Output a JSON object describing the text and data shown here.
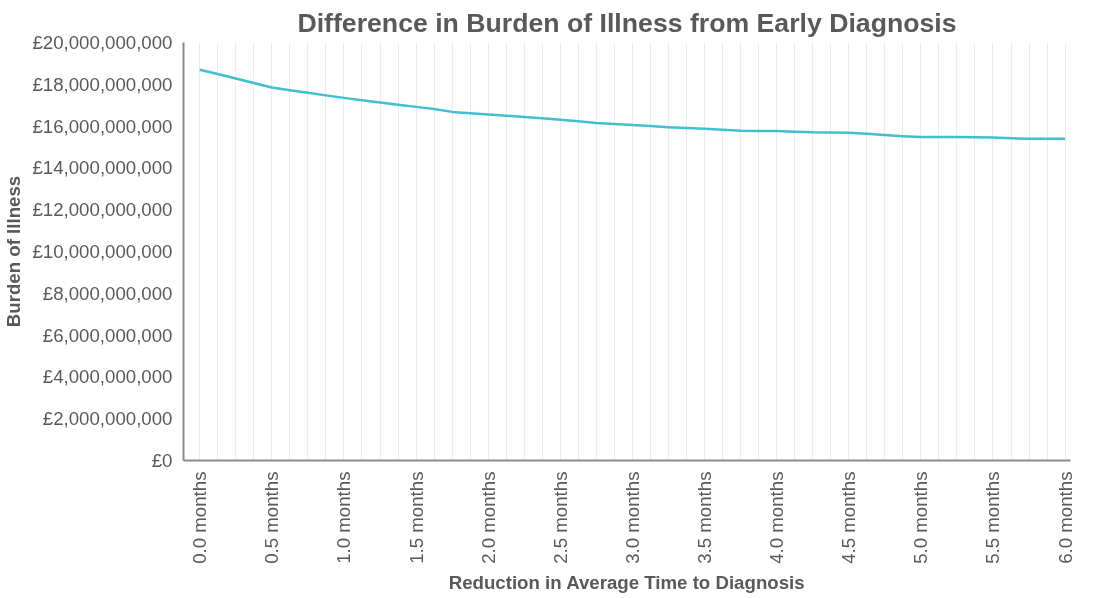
{
  "chart_data": {
    "type": "line",
    "title": "Difference in Burden of Illness from Early Diagnosis",
    "xlabel": "Reduction in Average Time to Diagnosis",
    "ylabel": "Burden of Illness",
    "categories": [
      "0.0 months",
      null,
      null,
      null,
      "0.5 months",
      null,
      null,
      null,
      "1.0 months",
      null,
      null,
      null,
      "1.5 months",
      null,
      null,
      null,
      "2.0 months",
      null,
      null,
      null,
      "2.5 months",
      null,
      null,
      null,
      "3.0 months",
      null,
      null,
      null,
      "3.5 months",
      null,
      null,
      null,
      "4.0 months",
      null,
      null,
      null,
      "4.5 months",
      null,
      null,
      null,
      "5.0 months",
      null,
      null,
      null,
      "5.5 months",
      null,
      null,
      null,
      "6.0 months"
    ],
    "series": [
      {
        "color": "#3fbfd0",
        "values": [
          18700000000,
          18490000000,
          18280000000,
          18060000000,
          17850000000,
          17720000000,
          17600000000,
          17470000000,
          17350000000,
          17240000000,
          17130000000,
          17020000000,
          16920000000,
          16820000000,
          16680000000,
          16620000000,
          16560000000,
          16500000000,
          16430000000,
          16370000000,
          16300000000,
          16230000000,
          16150000000,
          16100000000,
          16050000000,
          16000000000,
          15950000000,
          15910000000,
          15870000000,
          15830000000,
          15780000000,
          15770000000,
          15760000000,
          15730000000,
          15700000000,
          15690000000,
          15680000000,
          15630000000,
          15570000000,
          15520000000,
          15480000000,
          15480000000,
          15480000000,
          15470000000,
          15460000000,
          15420000000,
          15390000000,
          15390000000,
          15390000000
        ]
      }
    ],
    "ylim": [
      0,
      20000000000
    ],
    "yticks": [
      {
        "value": 0,
        "label": "£0"
      },
      {
        "value": 2000000000,
        "label": "£2,000,000,000"
      },
      {
        "value": 4000000000,
        "label": "£4,000,000,000"
      },
      {
        "value": 6000000000,
        "label": "£6,000,000,000"
      },
      {
        "value": 8000000000,
        "label": "£8,000,000,000"
      },
      {
        "value": 10000000000,
        "label": "£10,000,000,000"
      },
      {
        "value": 12000000000,
        "label": "£12,000,000,000"
      },
      {
        "value": 14000000000,
        "label": "£14,000,000,000"
      },
      {
        "value": 16000000000,
        "label": "£16,000,000,000"
      },
      {
        "value": 18000000000,
        "label": "£18,000,000,000"
      },
      {
        "value": 20000000000,
        "label": "£20,000,000,000"
      }
    ],
    "grid": "x",
    "marker": "none",
    "line_style": "solid"
  }
}
